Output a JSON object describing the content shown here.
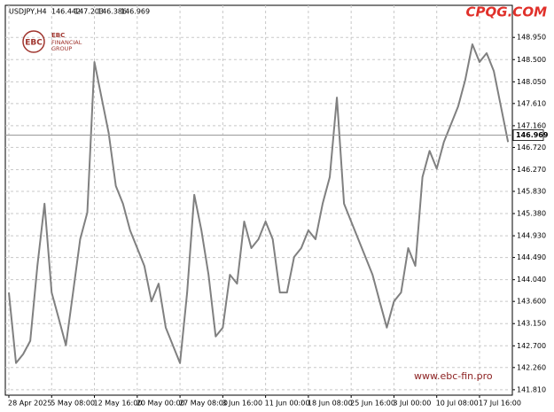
{
  "chart_data": {
    "type": "line",
    "title": "USDJPY,H4",
    "ohlc": [
      146.442,
      147.203,
      146.386,
      146.969
    ],
    "watermark": "CPQG.COM",
    "logo_mark": "EBC",
    "logo_lines": [
      "EBC",
      "FINANCIAL",
      "GROUP"
    ],
    "website": "www.ebc-fin.pro",
    "grid": true,
    "categories": [
      "28 Apr 2025",
      null,
      null,
      null,
      null,
      null,
      "5 May 08:00",
      null,
      null,
      null,
      null,
      null,
      "12 May 16:00",
      null,
      null,
      null,
      null,
      null,
      "20 May 00:00",
      null,
      null,
      null,
      null,
      null,
      "27 May 08:00",
      null,
      null,
      null,
      null,
      null,
      "3 Jun 16:00",
      null,
      null,
      null,
      null,
      null,
      "11 Jun 00:00",
      null,
      null,
      null,
      null,
      null,
      "18 Jun 08:00",
      null,
      null,
      null,
      null,
      null,
      "25 Jun 16:00",
      null,
      null,
      null,
      null,
      null,
      "3 Jul 00:00",
      null,
      null,
      null,
      null,
      null,
      "10 Jul 08:00",
      null,
      null,
      null,
      null,
      null,
      "17 Jul 16:00",
      null,
      null,
      null,
      null
    ],
    "series": [
      {
        "name": "USDJPY",
        "color": "#808080",
        "values": [
          143.78,
          142.35,
          142.53,
          142.8,
          144.32,
          145.58,
          143.78,
          143.25,
          142.71,
          143.78,
          144.86,
          145.4,
          148.45,
          147.73,
          147.01,
          145.94,
          145.58,
          145.04,
          144.68,
          144.32,
          143.6,
          143.96,
          143.07,
          142.71,
          142.35,
          143.78,
          145.76,
          145.04,
          144.14,
          142.89,
          143.07,
          144.14,
          143.96,
          145.22,
          144.68,
          144.86,
          145.22,
          144.86,
          143.78,
          143.78,
          144.5,
          144.68,
          145.04,
          144.86,
          145.58,
          146.12,
          147.73,
          145.58,
          145.22,
          144.86,
          144.5,
          144.14,
          143.6,
          143.07,
          143.6,
          143.78,
          144.68,
          144.32,
          146.12,
          146.65,
          146.29,
          146.83,
          147.19,
          147.55,
          148.09,
          148.81,
          148.45,
          148.63,
          148.27,
          147.55,
          146.83
        ]
      }
    ],
    "ylim": [
      141.7,
      149.6
    ],
    "yticks": [
      {
        "value": 141.81,
        "label": "141.810"
      },
      {
        "value": 142.26,
        "label": "142.260"
      },
      {
        "value": 142.7,
        "label": "142.700"
      },
      {
        "value": 143.15,
        "label": "143.150"
      },
      {
        "value": 143.6,
        "label": "143.600"
      },
      {
        "value": 144.04,
        "label": "144.040"
      },
      {
        "value": 144.49,
        "label": "144.490"
      },
      {
        "value": 144.93,
        "label": "144.930"
      },
      {
        "value": 145.38,
        "label": "145.380"
      },
      {
        "value": 145.83,
        "label": "145.830"
      },
      {
        "value": 146.27,
        "label": "146.270"
      },
      {
        "value": 146.72,
        "label": "146.720"
      },
      {
        "value": 147.16,
        "label": "147.160"
      },
      {
        "value": 147.61,
        "label": "147.610"
      },
      {
        "value": 148.05,
        "label": "148.050"
      },
      {
        "value": 148.5,
        "label": "148.500"
      },
      {
        "value": 148.95,
        "label": "148.950"
      }
    ]
  }
}
